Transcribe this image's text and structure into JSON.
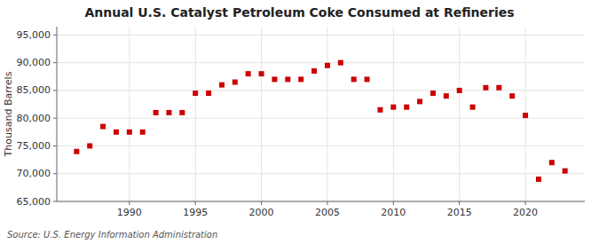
{
  "chart_data": {
    "type": "scatter",
    "title": "Annual U.S. Catalyst Petroleum Coke Consumed at Refineries",
    "ylabel": "Thousand Barrels",
    "source": "Source: U.S. Energy Information Administration",
    "x": [
      1986,
      1987,
      1988,
      1989,
      1990,
      1991,
      1992,
      1993,
      1994,
      1995,
      1996,
      1997,
      1998,
      1999,
      2000,
      2001,
      2002,
      2003,
      2004,
      2005,
      2006,
      2007,
      2008,
      2009,
      2010,
      2011,
      2012,
      2013,
      2014,
      2015,
      2016,
      2017,
      2018,
      2019,
      2020,
      2021,
      2022,
      2023
    ],
    "values": [
      74000,
      75000,
      78500,
      77500,
      77500,
      77500,
      81000,
      81000,
      81000,
      84500,
      84500,
      86000,
      86500,
      88000,
      88000,
      87000,
      87000,
      87000,
      88500,
      89500,
      90000,
      87000,
      87000,
      81500,
      82000,
      82000,
      83000,
      84500,
      84000,
      85000,
      82000,
      85500,
      85500,
      84000,
      80500,
      69000,
      72000,
      70500
    ],
    "color": "#cc0000",
    "marker": "square",
    "xlim": [
      1984.5,
      2024.5
    ],
    "xticks": [
      1990,
      1995,
      2000,
      2005,
      2010,
      2015,
      2020
    ],
    "ylim": [
      65000,
      96500
    ],
    "yticks": [
      {
        "value": 65000,
        "label": "65,000"
      },
      {
        "value": 70000,
        "label": "70,000"
      },
      {
        "value": 75000,
        "label": "75,000"
      },
      {
        "value": 80000,
        "label": "80,000"
      },
      {
        "value": 85000,
        "label": "85,000"
      },
      {
        "value": 90000,
        "label": "90,000"
      },
      {
        "value": 95000,
        "label": "95,000"
      }
    ],
    "grid": true
  }
}
